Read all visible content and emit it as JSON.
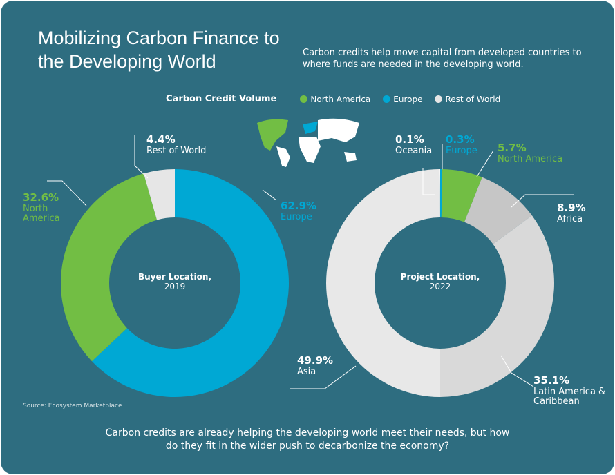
{
  "header": {
    "title": "Mobilizing Carbon Finance to the Developing World",
    "subtitle": "Carbon credits help move capital from developed countries to where funds are needed in the developing world."
  },
  "legend": {
    "title": "Carbon Credit Volume",
    "items": [
      {
        "name": "North America",
        "color": "#72be44"
      },
      {
        "name": "Europe",
        "color": "#00a8d4"
      },
      {
        "name": "Rest of World",
        "color": "#e6e6e6"
      }
    ]
  },
  "chart_data": [
    {
      "type": "donut",
      "title": "Buyer Location,",
      "subtitle": "2019",
      "categories": [
        "Europe",
        "North America",
        "Rest of World"
      ],
      "values": [
        62.9,
        32.6,
        4.4
      ],
      "value_labels": [
        "62.9%",
        "32.6%",
        "4.4%"
      ],
      "colors": [
        "#00a8d4",
        "#72be44",
        "#e6e6e6"
      ]
    },
    {
      "type": "donut",
      "title": "Project Location,",
      "subtitle": "2022",
      "categories": [
        "Europe",
        "North America",
        "Africa",
        "Latin America & Caribbean",
        "Asia",
        "Oceania"
      ],
      "values": [
        0.3,
        5.7,
        8.9,
        35.1,
        49.9,
        0.1
      ],
      "value_labels": [
        "0.3%",
        "5.7%",
        "8.9%",
        "35.1%",
        "49.9%",
        "0.1%"
      ],
      "colors": [
        "#00a8d4",
        "#72be44",
        "#c6c6c6",
        "#d9d9d9",
        "#e8e8e8",
        "#f4f4f4"
      ]
    }
  ],
  "source": "Source: Ecosystem Marketplace",
  "footer": "Carbon credits are already helping the developing world meet their needs, but how do they fit in the wider push to decarbonize the economy?"
}
